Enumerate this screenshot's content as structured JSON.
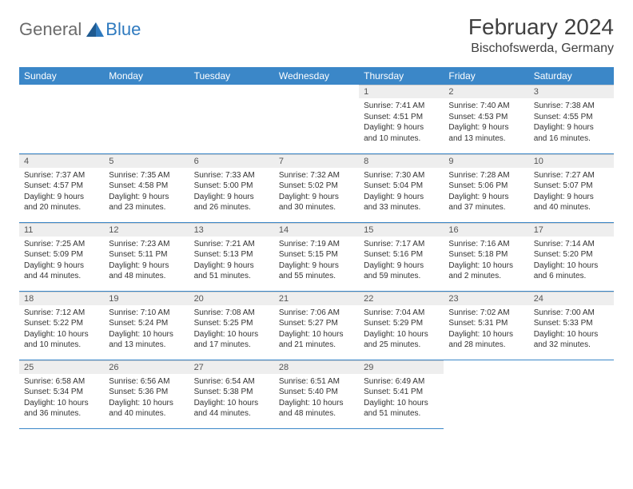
{
  "logo": {
    "general": "General",
    "blue": "Blue"
  },
  "title": "February 2024",
  "location": "Bischofswerda, Germany",
  "colors": {
    "header_bg": "#3b87c8",
    "header_text": "#ffffff",
    "daynum_bg": "#eeeeee",
    "border": "#3b87c8",
    "logo_gray": "#6b6b6b",
    "logo_blue": "#2f7abf"
  },
  "fonts": {
    "title_size": 28,
    "location_size": 16,
    "th_size": 12,
    "daynum_size": 11,
    "body_size": 10
  },
  "weekdays": [
    "Sunday",
    "Monday",
    "Tuesday",
    "Wednesday",
    "Thursday",
    "Friday",
    "Saturday"
  ],
  "weeks": [
    [
      null,
      null,
      null,
      null,
      {
        "n": "1",
        "sr": "Sunrise: 7:41 AM",
        "ss": "Sunset: 4:51 PM",
        "d1": "Daylight: 9 hours",
        "d2": "and 10 minutes."
      },
      {
        "n": "2",
        "sr": "Sunrise: 7:40 AM",
        "ss": "Sunset: 4:53 PM",
        "d1": "Daylight: 9 hours",
        "d2": "and 13 minutes."
      },
      {
        "n": "3",
        "sr": "Sunrise: 7:38 AM",
        "ss": "Sunset: 4:55 PM",
        "d1": "Daylight: 9 hours",
        "d2": "and 16 minutes."
      }
    ],
    [
      {
        "n": "4",
        "sr": "Sunrise: 7:37 AM",
        "ss": "Sunset: 4:57 PM",
        "d1": "Daylight: 9 hours",
        "d2": "and 20 minutes."
      },
      {
        "n": "5",
        "sr": "Sunrise: 7:35 AM",
        "ss": "Sunset: 4:58 PM",
        "d1": "Daylight: 9 hours",
        "d2": "and 23 minutes."
      },
      {
        "n": "6",
        "sr": "Sunrise: 7:33 AM",
        "ss": "Sunset: 5:00 PM",
        "d1": "Daylight: 9 hours",
        "d2": "and 26 minutes."
      },
      {
        "n": "7",
        "sr": "Sunrise: 7:32 AM",
        "ss": "Sunset: 5:02 PM",
        "d1": "Daylight: 9 hours",
        "d2": "and 30 minutes."
      },
      {
        "n": "8",
        "sr": "Sunrise: 7:30 AM",
        "ss": "Sunset: 5:04 PM",
        "d1": "Daylight: 9 hours",
        "d2": "and 33 minutes."
      },
      {
        "n": "9",
        "sr": "Sunrise: 7:28 AM",
        "ss": "Sunset: 5:06 PM",
        "d1": "Daylight: 9 hours",
        "d2": "and 37 minutes."
      },
      {
        "n": "10",
        "sr": "Sunrise: 7:27 AM",
        "ss": "Sunset: 5:07 PM",
        "d1": "Daylight: 9 hours",
        "d2": "and 40 minutes."
      }
    ],
    [
      {
        "n": "11",
        "sr": "Sunrise: 7:25 AM",
        "ss": "Sunset: 5:09 PM",
        "d1": "Daylight: 9 hours",
        "d2": "and 44 minutes."
      },
      {
        "n": "12",
        "sr": "Sunrise: 7:23 AM",
        "ss": "Sunset: 5:11 PM",
        "d1": "Daylight: 9 hours",
        "d2": "and 48 minutes."
      },
      {
        "n": "13",
        "sr": "Sunrise: 7:21 AM",
        "ss": "Sunset: 5:13 PM",
        "d1": "Daylight: 9 hours",
        "d2": "and 51 minutes."
      },
      {
        "n": "14",
        "sr": "Sunrise: 7:19 AM",
        "ss": "Sunset: 5:15 PM",
        "d1": "Daylight: 9 hours",
        "d2": "and 55 minutes."
      },
      {
        "n": "15",
        "sr": "Sunrise: 7:17 AM",
        "ss": "Sunset: 5:16 PM",
        "d1": "Daylight: 9 hours",
        "d2": "and 59 minutes."
      },
      {
        "n": "16",
        "sr": "Sunrise: 7:16 AM",
        "ss": "Sunset: 5:18 PM",
        "d1": "Daylight: 10 hours",
        "d2": "and 2 minutes."
      },
      {
        "n": "17",
        "sr": "Sunrise: 7:14 AM",
        "ss": "Sunset: 5:20 PM",
        "d1": "Daylight: 10 hours",
        "d2": "and 6 minutes."
      }
    ],
    [
      {
        "n": "18",
        "sr": "Sunrise: 7:12 AM",
        "ss": "Sunset: 5:22 PM",
        "d1": "Daylight: 10 hours",
        "d2": "and 10 minutes."
      },
      {
        "n": "19",
        "sr": "Sunrise: 7:10 AM",
        "ss": "Sunset: 5:24 PM",
        "d1": "Daylight: 10 hours",
        "d2": "and 13 minutes."
      },
      {
        "n": "20",
        "sr": "Sunrise: 7:08 AM",
        "ss": "Sunset: 5:25 PM",
        "d1": "Daylight: 10 hours",
        "d2": "and 17 minutes."
      },
      {
        "n": "21",
        "sr": "Sunrise: 7:06 AM",
        "ss": "Sunset: 5:27 PM",
        "d1": "Daylight: 10 hours",
        "d2": "and 21 minutes."
      },
      {
        "n": "22",
        "sr": "Sunrise: 7:04 AM",
        "ss": "Sunset: 5:29 PM",
        "d1": "Daylight: 10 hours",
        "d2": "and 25 minutes."
      },
      {
        "n": "23",
        "sr": "Sunrise: 7:02 AM",
        "ss": "Sunset: 5:31 PM",
        "d1": "Daylight: 10 hours",
        "d2": "and 28 minutes."
      },
      {
        "n": "24",
        "sr": "Sunrise: 7:00 AM",
        "ss": "Sunset: 5:33 PM",
        "d1": "Daylight: 10 hours",
        "d2": "and 32 minutes."
      }
    ],
    [
      {
        "n": "25",
        "sr": "Sunrise: 6:58 AM",
        "ss": "Sunset: 5:34 PM",
        "d1": "Daylight: 10 hours",
        "d2": "and 36 minutes."
      },
      {
        "n": "26",
        "sr": "Sunrise: 6:56 AM",
        "ss": "Sunset: 5:36 PM",
        "d1": "Daylight: 10 hours",
        "d2": "and 40 minutes."
      },
      {
        "n": "27",
        "sr": "Sunrise: 6:54 AM",
        "ss": "Sunset: 5:38 PM",
        "d1": "Daylight: 10 hours",
        "d2": "and 44 minutes."
      },
      {
        "n": "28",
        "sr": "Sunrise: 6:51 AM",
        "ss": "Sunset: 5:40 PM",
        "d1": "Daylight: 10 hours",
        "d2": "and 48 minutes."
      },
      {
        "n": "29",
        "sr": "Sunrise: 6:49 AM",
        "ss": "Sunset: 5:41 PM",
        "d1": "Daylight: 10 hours",
        "d2": "and 51 minutes."
      },
      null,
      null
    ]
  ]
}
